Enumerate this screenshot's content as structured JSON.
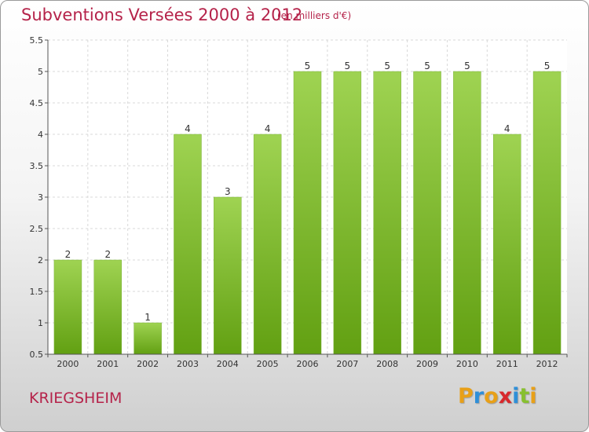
{
  "header": {
    "title": "Subventions Versées 2000 à 2012",
    "subtitle": "(en milliers d'€)"
  },
  "footer": {
    "commune": "KRIEGSHEIM",
    "logo_letters": [
      "P",
      "r",
      "o",
      "x",
      "i",
      "t",
      "i"
    ],
    "logo_colors": [
      "#e8a018",
      "#2f8fd8",
      "#e8a018",
      "#d8282c",
      "#2f8fd8",
      "#88c030",
      "#e8a018"
    ]
  },
  "chart_data": {
    "type": "bar",
    "title": "Subventions Versées 2000 à 2012",
    "subtitle": "(en milliers d'€)",
    "categories": [
      "2000",
      "2001",
      "2002",
      "2003",
      "2004",
      "2005",
      "2006",
      "2007",
      "2008",
      "2009",
      "2010",
      "2011",
      "2012"
    ],
    "values": [
      2,
      2,
      1,
      4,
      3,
      4,
      5,
      5,
      5,
      5,
      5,
      4,
      5
    ],
    "ylim": [
      0.5,
      5.5
    ],
    "yticks": [
      0.5,
      1,
      1.5,
      2,
      2.5,
      3,
      3.5,
      4,
      4.5,
      5,
      5.5
    ],
    "ytick_labels": [
      "0.5",
      "1",
      "1.5",
      "2",
      "2.5",
      "3",
      "3.5",
      "4",
      "4.5",
      "5",
      "5.5"
    ],
    "grid": true,
    "bar_color": "#8cc63f",
    "xlabel": "",
    "ylabel": ""
  }
}
